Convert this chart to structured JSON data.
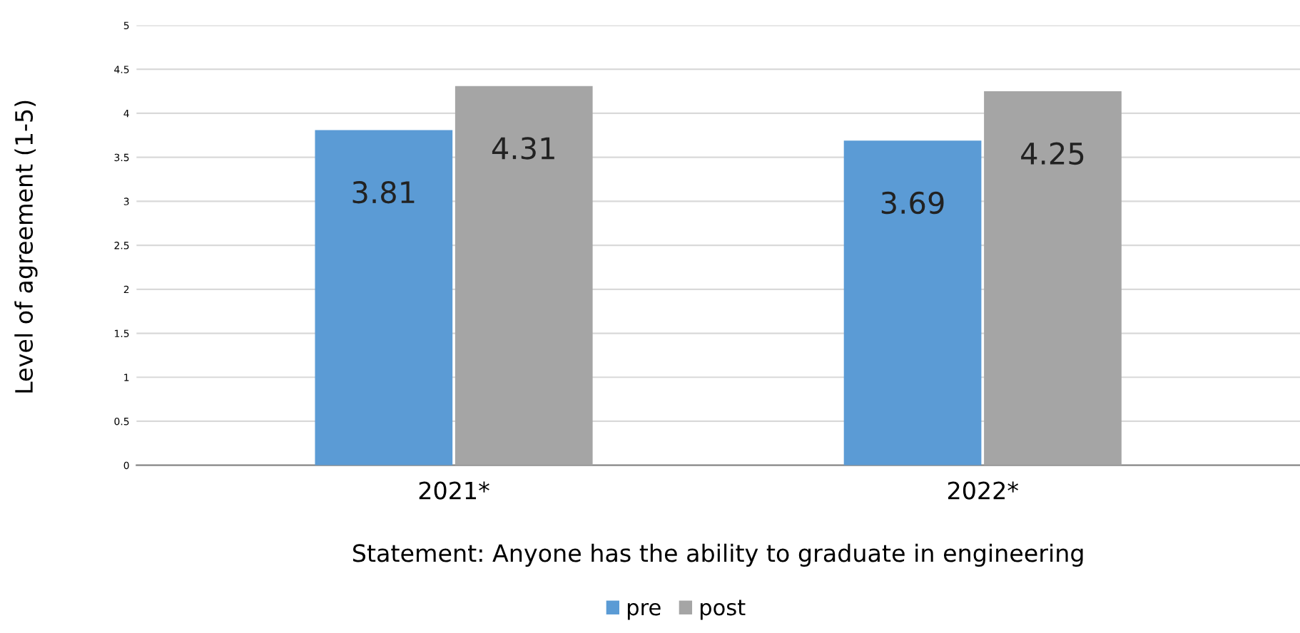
{
  "chart_data": {
    "type": "bar",
    "categories": [
      "2021*",
      "2022*"
    ],
    "series": [
      {
        "name": "pre",
        "color": "#5b9bd5",
        "values": [
          3.81,
          3.69
        ]
      },
      {
        "name": "post",
        "color": "#a5a5a5",
        "values": [
          4.31,
          4.25
        ]
      }
    ],
    "data_labels": true,
    "xlabel": "Statement: Anyone has the ability to graduate in engineering",
    "ylabel": "Level of agreement (1-5)",
    "ylim": [
      0,
      5
    ],
    "yticks": [
      0,
      0.5,
      1,
      1.5,
      2,
      2.5,
      3,
      3.5,
      4,
      4.5,
      5
    ],
    "grid": "y",
    "legend": "bottom"
  }
}
